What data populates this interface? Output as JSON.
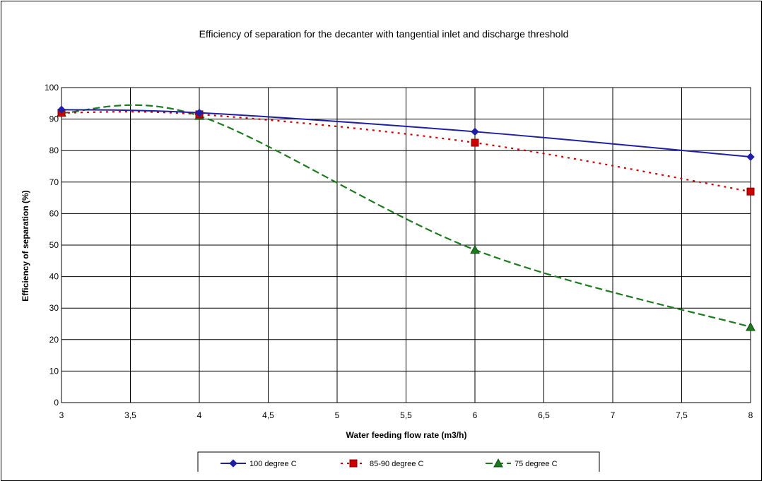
{
  "chart_data": {
    "type": "line",
    "title": "Efficiency of separation for the decanter with tangential inlet and discharge threshold",
    "xlabel": "Water feeding flow rate (m3/h)",
    "ylabel": "Efficiency of separation (%)",
    "xlim": [
      3,
      8
    ],
    "ylim": [
      0,
      100
    ],
    "x_ticks": [
      3,
      3.5,
      4,
      4.5,
      5,
      5.5,
      6,
      6.5,
      7,
      7.5,
      8
    ],
    "x_tick_labels": [
      "3",
      "3,5",
      "4",
      "4,5",
      "5",
      "5,5",
      "6",
      "6,5",
      "7",
      "7,5",
      "8"
    ],
    "y_ticks": [
      0,
      10,
      20,
      30,
      40,
      50,
      60,
      70,
      80,
      90,
      100
    ],
    "y_tick_labels": [
      "0",
      "10",
      "20",
      "30",
      "40",
      "50",
      "60",
      "70",
      "80",
      "90",
      "100"
    ],
    "grid": "horizontal and vertical",
    "legend_position": "bottom",
    "x": [
      3,
      4,
      6,
      8
    ],
    "series": [
      {
        "name": "100 degree C",
        "values": [
          93,
          92,
          86,
          78
        ],
        "color": "#1f1fa6",
        "line_style": "solid",
        "marker": "diamond"
      },
      {
        "name": "85-90 degree C",
        "values": [
          92,
          91.5,
          82.5,
          67
        ],
        "color": "#cc0000",
        "line_style": "dotted",
        "marker": "square"
      },
      {
        "name": "75 degree C",
        "values": [
          92,
          91,
          48.5,
          24
        ],
        "color": "#1e7a1e",
        "line_style": "dashed",
        "marker": "triangle"
      }
    ]
  }
}
